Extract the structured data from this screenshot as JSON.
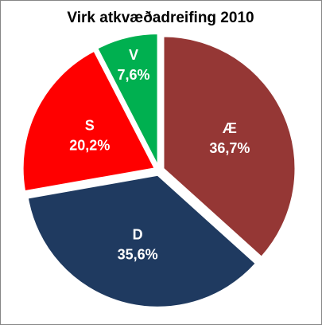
{
  "chart_data": {
    "type": "pie",
    "title": "Virk atkvæðadreifing 2010",
    "categories": [
      "Æ",
      "D",
      "S",
      "V"
    ],
    "values": [
      36.7,
      35.6,
      20.2,
      7.6
    ],
    "value_labels": [
      "36,7%",
      "35,6%",
      "20,2%",
      "7,6%"
    ],
    "colors": [
      "#953735",
      "#1f3a60",
      "#ff0000",
      "#00b050"
    ]
  }
}
